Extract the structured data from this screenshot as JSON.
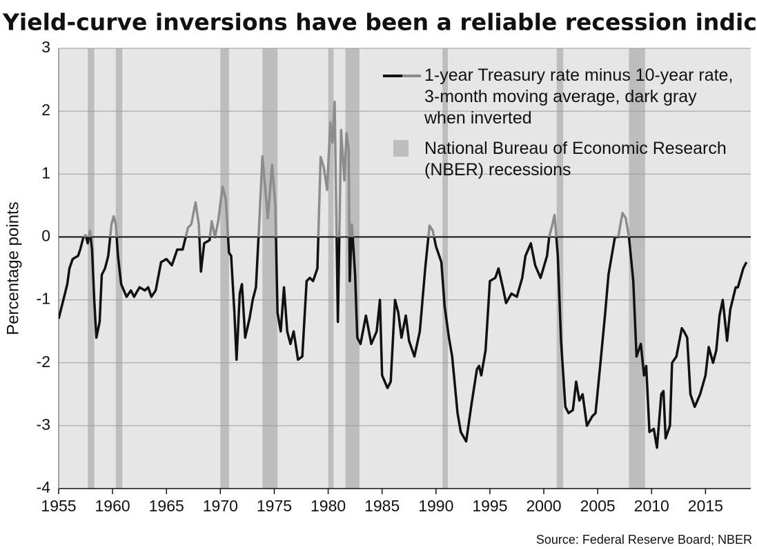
{
  "chart_data": {
    "type": "line",
    "title": "Yield-curve inversions have been a reliable recession indicator",
    "y_label": "Percentage points",
    "source": "Source: Federal Reserve Board; NBER",
    "legend": "upper right",
    "grid": true,
    "xlim": [
      1955,
      2019.2
    ],
    "ylim": [
      -4,
      3
    ],
    "xticks": [
      1955,
      1960,
      1965,
      1970,
      1975,
      1980,
      1985,
      1990,
      1995,
      2000,
      2005,
      2010,
      2015
    ],
    "yticks": [
      -4,
      -3,
      -2,
      -1,
      0,
      1,
      2,
      3
    ],
    "recessions_label": "National Bureau of Economic Research (NBER) recessions",
    "recessions_color": "#bdbdbd",
    "recessions": [
      [
        1957.7,
        1958.3
      ],
      [
        1960.3,
        1960.9
      ],
      [
        1970.0,
        1970.8
      ],
      [
        1973.9,
        1975.3
      ],
      [
        1980.0,
        1980.5
      ],
      [
        1981.6,
        1982.9
      ],
      [
        1990.6,
        1991.1
      ],
      [
        2001.2,
        2001.8
      ],
      [
        2007.9,
        2009.4
      ]
    ],
    "series": [
      {
        "name": "1-year Treasury rate minus 10-year rate, 3-month moving average, dark gray when inverted",
        "color": "#111111",
        "inverted_color": "#8c8c8c",
        "x": [
          1955.0,
          1955.8,
          1956.0,
          1956.3,
          1956.8,
          1957.0,
          1957.3,
          1957.5,
          1957.7,
          1957.9,
          1958.1,
          1958.3,
          1958.5,
          1958.8,
          1959.0,
          1959.3,
          1959.6,
          1959.9,
          1960.1,
          1960.3,
          1960.5,
          1960.8,
          1961.3,
          1961.7,
          1962.0,
          1962.5,
          1963.0,
          1963.3,
          1963.6,
          1964.0,
          1964.5,
          1965.0,
          1965.5,
          1966.0,
          1966.5,
          1967.0,
          1967.3,
          1967.7,
          1968.0,
          1968.2,
          1968.5,
          1969.0,
          1969.2,
          1969.5,
          1969.8,
          1970.2,
          1970.5,
          1970.8,
          1971.0,
          1971.3,
          1971.5,
          1971.8,
          1972.0,
          1972.3,
          1972.7,
          1973.0,
          1973.3,
          1973.6,
          1973.9,
          1974.2,
          1974.4,
          1974.8,
          1975.1,
          1975.3,
          1975.6,
          1975.9,
          1976.2,
          1976.5,
          1976.8,
          1977.2,
          1977.6,
          1978.0,
          1978.3,
          1978.6,
          1979.0,
          1979.3,
          1979.6,
          1979.9,
          1980.2,
          1980.4,
          1980.6,
          1980.9,
          1981.2,
          1981.5,
          1981.7,
          1981.9,
          1982.0,
          1982.2,
          1982.5,
          1982.7,
          1983.0,
          1983.5,
          1984.0,
          1984.5,
          1984.8,
          1985.0,
          1985.5,
          1985.8,
          1986.2,
          1986.5,
          1986.8,
          1987.2,
          1987.5,
          1988.0,
          1988.5,
          1989.0,
          1989.4,
          1989.7,
          1990.0,
          1990.5,
          1990.8,
          1991.2,
          1991.5,
          1992.0,
          1992.3,
          1992.8,
          1993.3,
          1993.8,
          1994.0,
          1994.2,
          1994.6,
          1995.0,
          1995.5,
          1995.8,
          1996.2,
          1996.5,
          1997.0,
          1997.5,
          1998.0,
          1998.3,
          1998.8,
          1999.2,
          1999.7,
          2000.3,
          2000.5,
          2000.8,
          2001.0,
          2001.3,
          2001.6,
          2002.0,
          2002.3,
          2002.7,
          2003.0,
          2003.3,
          2003.6,
          2004.0,
          2004.5,
          2004.8,
          2005.2,
          2005.7,
          2006.0,
          2006.3,
          2006.6,
          2006.9,
          2007.3,
          2007.6,
          2007.9,
          2008.3,
          2008.6,
          2009.0,
          2009.3,
          2009.5,
          2009.8,
          2010.2,
          2010.5,
          2010.9,
          2011.1,
          2011.3,
          2011.7,
          2011.9,
          2012.3,
          2012.8,
          2013.0,
          2013.3,
          2013.6,
          2014.0,
          2014.5,
          2015.0,
          2015.3,
          2015.7,
          2016.0,
          2016.3,
          2016.6,
          2017.0,
          2017.3,
          2017.8,
          2018.0,
          2018.5,
          2018.8
        ],
        "values": [
          -1.3,
          -0.75,
          -0.5,
          -0.35,
          -0.3,
          -0.2,
          0.0,
          0.03,
          -0.1,
          0.1,
          -0.2,
          -1.0,
          -1.6,
          -1.35,
          -0.6,
          -0.5,
          -0.3,
          0.2,
          0.33,
          0.2,
          -0.3,
          -0.75,
          -0.95,
          -0.85,
          -0.95,
          -0.8,
          -0.85,
          -0.8,
          -0.95,
          -0.85,
          -0.4,
          -0.35,
          -0.45,
          -0.2,
          -0.2,
          0.15,
          0.2,
          0.55,
          0.2,
          -0.55,
          -0.1,
          -0.05,
          0.25,
          0.0,
          0.25,
          0.8,
          0.6,
          -0.25,
          -0.3,
          -1.2,
          -1.95,
          -0.9,
          -0.75,
          -1.6,
          -1.3,
          -1.0,
          -0.8,
          0.2,
          1.28,
          0.7,
          0.3,
          1.15,
          0.5,
          -1.2,
          -1.5,
          -0.8,
          -1.5,
          -1.7,
          -1.5,
          -1.95,
          -1.9,
          -0.7,
          -0.65,
          -0.7,
          -0.5,
          1.27,
          1.1,
          0.75,
          1.82,
          1.5,
          2.15,
          -1.35,
          1.7,
          0.9,
          1.65,
          1.4,
          -0.7,
          0.2,
          -0.6,
          -1.6,
          -1.7,
          -1.25,
          -1.7,
          -1.5,
          -1.0,
          -2.2,
          -2.4,
          -2.3,
          -1.0,
          -1.2,
          -1.6,
          -1.25,
          -1.65,
          -1.9,
          -1.5,
          -0.5,
          0.18,
          0.1,
          -0.15,
          -0.4,
          -1.1,
          -1.6,
          -1.9,
          -2.8,
          -3.1,
          -3.25,
          -2.65,
          -2.1,
          -2.05,
          -2.2,
          -1.8,
          -0.7,
          -0.65,
          -0.5,
          -0.8,
          -1.05,
          -0.9,
          -0.95,
          -0.65,
          -0.3,
          -0.1,
          -0.45,
          -0.65,
          -0.3,
          0.0,
          0.2,
          0.35,
          -0.3,
          -1.65,
          -2.7,
          -2.8,
          -2.75,
          -2.3,
          -2.6,
          -2.5,
          -3.0,
          -2.85,
          -2.8,
          -2.1,
          -1.2,
          -0.6,
          -0.3,
          0.0,
          0.0,
          0.38,
          0.3,
          0.0,
          -0.7,
          -1.9,
          -1.7,
          -2.2,
          -2.05,
          -3.1,
          -3.05,
          -3.35,
          -2.5,
          -2.45,
          -3.2,
          -3.0,
          -2.0,
          -1.9,
          -1.45,
          -1.5,
          -1.6,
          -2.5,
          -2.7,
          -2.5,
          -2.2,
          -1.75,
          -2.0,
          -1.8,
          -1.25,
          -1.0,
          -1.65,
          -1.15,
          -0.8,
          -0.8,
          -0.5,
          -0.4
        ]
      }
    ]
  }
}
